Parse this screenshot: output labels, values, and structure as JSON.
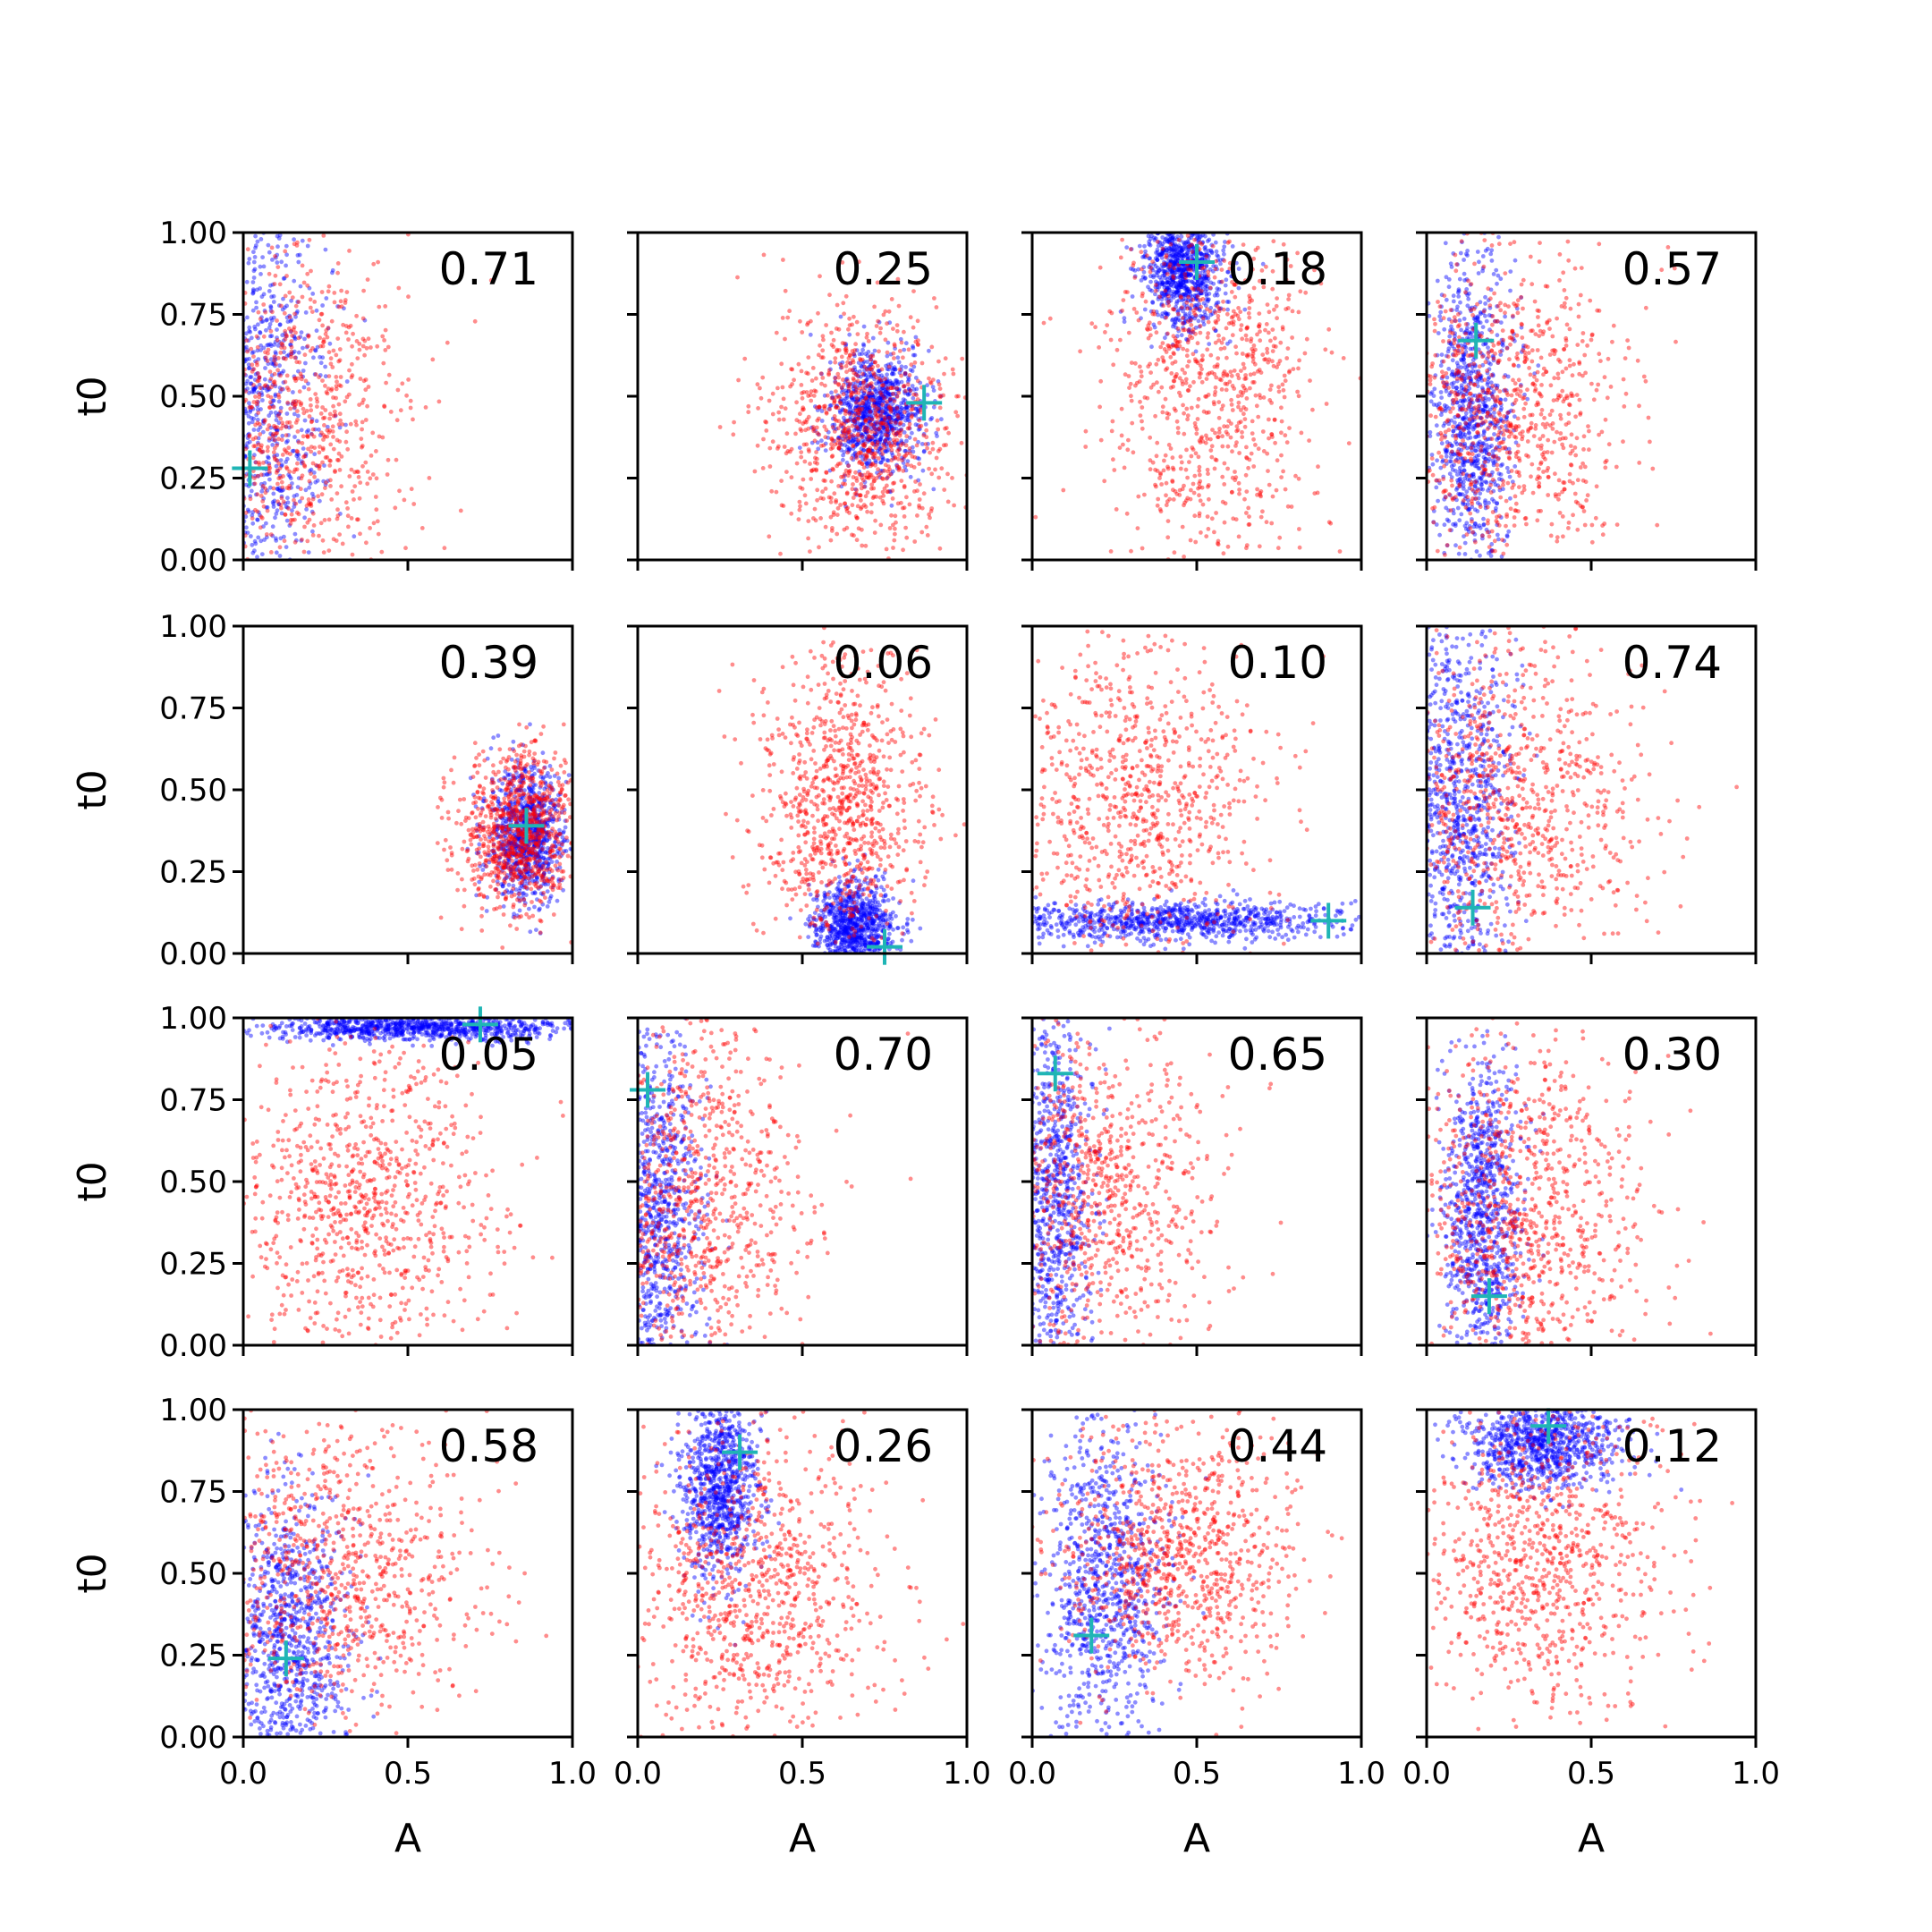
{
  "figure": {
    "xlabel": "A",
    "ylabel": "t0",
    "xlim": [
      0,
      1
    ],
    "ylim": [
      0,
      1
    ],
    "x_ticks": [
      "0.0",
      "0.5",
      "1.0"
    ],
    "y_ticks": [
      "0.00",
      "0.25",
      "0.50",
      "0.75",
      "1.00"
    ],
    "series_colors": {
      "primary": "#ff0000",
      "secondary": "#0000ff",
      "marker": "#1fb5b5"
    },
    "marker_symbol": "plus"
  },
  "chart_data": [
    {
      "type": "scatter",
      "value_label": "0.71",
      "marker": {
        "x": 0.02,
        "y": 0.28
      },
      "red": {
        "cx": 0.14,
        "cy": 0.4,
        "sx": 0.18,
        "sy": 0.28
      },
      "blue": {
        "cx": 0.05,
        "cy": 0.5,
        "sx": 0.1,
        "sy": 0.35
      }
    },
    {
      "type": "scatter",
      "value_label": "0.25",
      "marker": {
        "x": 0.87,
        "y": 0.48
      },
      "red": {
        "cx": 0.68,
        "cy": 0.4,
        "sx": 0.14,
        "sy": 0.18
      },
      "blue": {
        "cx": 0.72,
        "cy": 0.45,
        "sx": 0.07,
        "sy": 0.09
      }
    },
    {
      "type": "scatter",
      "value_label": "0.18",
      "marker": {
        "x": 0.5,
        "y": 0.91
      },
      "red": {
        "cx": 0.55,
        "cy": 0.55,
        "sx": 0.16,
        "sy": 0.3
      },
      "blue": {
        "cx": 0.46,
        "cy": 0.88,
        "sx": 0.06,
        "sy": 0.09
      }
    },
    {
      "type": "scatter",
      "value_label": "0.57",
      "marker": {
        "x": 0.15,
        "y": 0.67
      },
      "red": {
        "cx": 0.25,
        "cy": 0.45,
        "sx": 0.18,
        "sy": 0.25
      },
      "blue": {
        "cx": 0.14,
        "cy": 0.45,
        "sx": 0.06,
        "sy": 0.25
      }
    },
    {
      "type": "scatter",
      "value_label": "0.39",
      "marker": {
        "x": 0.86,
        "y": 0.39
      },
      "red": {
        "cx": 0.83,
        "cy": 0.38,
        "sx": 0.09,
        "sy": 0.12
      },
      "blue": {
        "cx": 0.86,
        "cy": 0.36,
        "sx": 0.06,
        "sy": 0.1
      }
    },
    {
      "type": "scatter",
      "value_label": "0.06",
      "marker": {
        "x": 0.75,
        "y": 0.02
      },
      "red": {
        "cx": 0.62,
        "cy": 0.45,
        "sx": 0.13,
        "sy": 0.22
      },
      "blue": {
        "cx": 0.66,
        "cy": 0.08,
        "sx": 0.06,
        "sy": 0.07
      }
    },
    {
      "type": "scatter",
      "value_label": "0.10",
      "marker": {
        "x": 0.9,
        "y": 0.1
      },
      "red": {
        "cx": 0.3,
        "cy": 0.45,
        "sx": 0.2,
        "sy": 0.28
      },
      "blue": {
        "cx": 0.4,
        "cy": 0.1,
        "sx": 0.3,
        "sy": 0.03
      }
    },
    {
      "type": "scatter",
      "value_label": "0.74",
      "marker": {
        "x": 0.14,
        "y": 0.14
      },
      "red": {
        "cx": 0.25,
        "cy": 0.45,
        "sx": 0.2,
        "sy": 0.25
      },
      "blue": {
        "cx": 0.1,
        "cy": 0.45,
        "sx": 0.08,
        "sy": 0.3
      }
    },
    {
      "type": "scatter",
      "value_label": "0.05",
      "marker": {
        "x": 0.72,
        "y": 0.98
      },
      "red": {
        "cx": 0.35,
        "cy": 0.45,
        "sx": 0.2,
        "sy": 0.25
      },
      "blue": {
        "cx": 0.55,
        "cy": 0.97,
        "sx": 0.25,
        "sy": 0.02
      }
    },
    {
      "type": "scatter",
      "value_label": "0.70",
      "marker": {
        "x": 0.03,
        "y": 0.78
      },
      "red": {
        "cx": 0.18,
        "cy": 0.45,
        "sx": 0.17,
        "sy": 0.27
      },
      "blue": {
        "cx": 0.06,
        "cy": 0.4,
        "sx": 0.07,
        "sy": 0.3
      }
    },
    {
      "type": "scatter",
      "value_label": "0.65",
      "marker": {
        "x": 0.07,
        "y": 0.83
      },
      "red": {
        "cx": 0.2,
        "cy": 0.45,
        "sx": 0.18,
        "sy": 0.27
      },
      "blue": {
        "cx": 0.06,
        "cy": 0.45,
        "sx": 0.06,
        "sy": 0.3
      }
    },
    {
      "type": "scatter",
      "value_label": "0.30",
      "marker": {
        "x": 0.19,
        "y": 0.15
      },
      "red": {
        "cx": 0.3,
        "cy": 0.4,
        "sx": 0.18,
        "sy": 0.25
      },
      "blue": {
        "cx": 0.17,
        "cy": 0.4,
        "sx": 0.06,
        "sy": 0.25
      }
    },
    {
      "type": "scatter",
      "value_label": "0.58",
      "marker": {
        "x": 0.13,
        "y": 0.24
      },
      "red": {
        "cx": 0.28,
        "cy": 0.5,
        "sx": 0.22,
        "sy": 0.25
      },
      "blue": {
        "cx": 0.14,
        "cy": 0.3,
        "sx": 0.09,
        "sy": 0.22
      }
    },
    {
      "type": "scatter",
      "value_label": "0.26",
      "marker": {
        "x": 0.31,
        "y": 0.87
      },
      "red": {
        "cx": 0.35,
        "cy": 0.45,
        "sx": 0.2,
        "sy": 0.25
      },
      "blue": {
        "cx": 0.25,
        "cy": 0.78,
        "sx": 0.06,
        "sy": 0.14
      }
    },
    {
      "type": "scatter",
      "value_label": "0.44",
      "marker": {
        "x": 0.18,
        "y": 0.31
      },
      "red": {
        "cx": 0.45,
        "cy": 0.55,
        "sx": 0.18,
        "sy": 0.2
      },
      "blue": {
        "cx": 0.22,
        "cy": 0.45,
        "sx": 0.1,
        "sy": 0.25
      }
    },
    {
      "type": "scatter",
      "value_label": "0.12",
      "marker": {
        "x": 0.37,
        "y": 0.95
      },
      "red": {
        "cx": 0.35,
        "cy": 0.55,
        "sx": 0.2,
        "sy": 0.25
      },
      "blue": {
        "cx": 0.35,
        "cy": 0.9,
        "sx": 0.12,
        "sy": 0.07
      }
    }
  ]
}
